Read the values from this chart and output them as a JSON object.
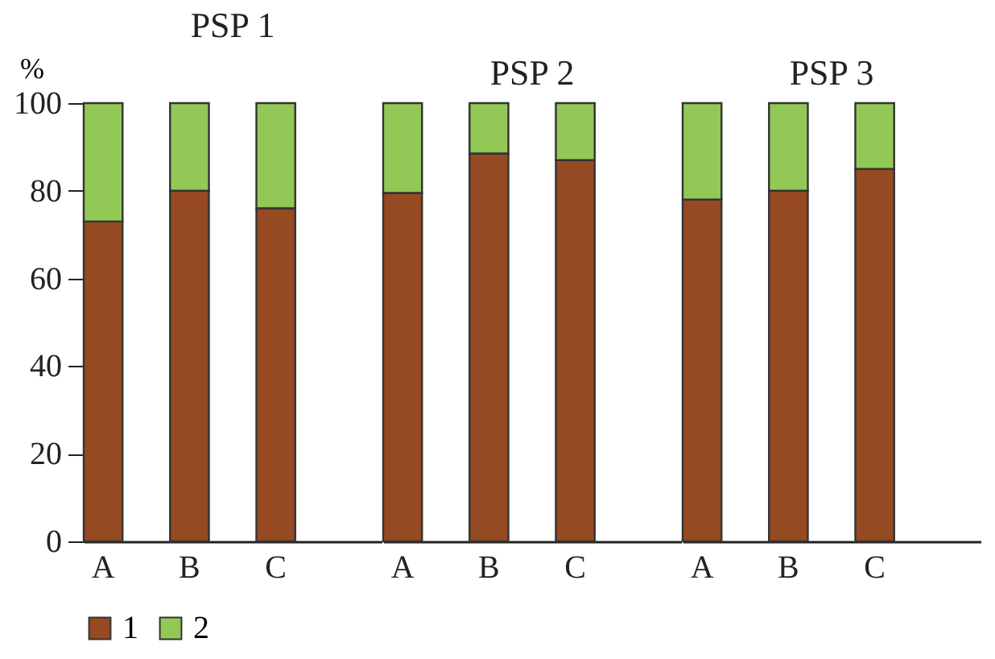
{
  "chart_data": [
    {
      "type": "bar",
      "title": "PSP 1",
      "ylabel": "%",
      "categories": [
        "A",
        "B",
        "C"
      ],
      "stacked": true,
      "ylim": [
        0,
        100
      ],
      "yticks": [
        0,
        20,
        40,
        60,
        80,
        100
      ],
      "legend": "bottom",
      "series": [
        {
          "name": "1",
          "color": "#964a22",
          "values": [
            73,
            80,
            76
          ]
        },
        {
          "name": "2",
          "color": "#92c956",
          "values": [
            27,
            20,
            24
          ]
        }
      ]
    },
    {
      "type": "bar",
      "title": "PSP 2",
      "categories": [
        "A",
        "B",
        "C"
      ],
      "stacked": true,
      "ylim": [
        0,
        100
      ],
      "yticks": [
        0,
        20,
        40,
        60,
        80,
        100
      ],
      "tick_labels": "x",
      "legend": "bottom",
      "series": [
        {
          "name": "1",
          "color": "#964a22",
          "values": [
            79.5,
            88.5,
            87
          ]
        },
        {
          "name": "2",
          "color": "#92c956",
          "values": [
            20.5,
            11.5,
            13
          ]
        }
      ]
    },
    {
      "type": "bar",
      "title": "PSP 3",
      "categories": [
        "A",
        "B",
        "C"
      ],
      "stacked": true,
      "ylim": [
        0,
        100
      ],
      "yticks": [
        0,
        20,
        40,
        60,
        80,
        100
      ],
      "tick_labels": "x",
      "legend": "bottom",
      "series": [
        {
          "name": "1",
          "color": "#964a22",
          "values": [
            78,
            80,
            85
          ]
        },
        {
          "name": "2",
          "color": "#92c956",
          "values": [
            22,
            20,
            15
          ]
        }
      ]
    }
  ]
}
